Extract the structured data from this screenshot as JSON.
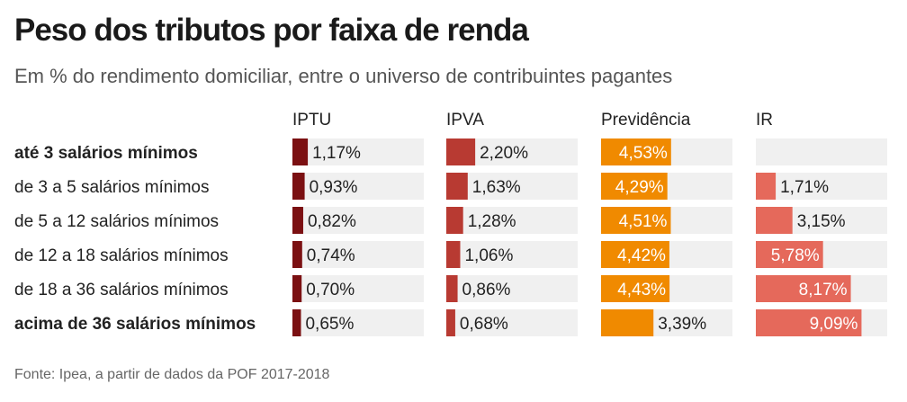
{
  "title": "Peso dos tributos por faixa de renda",
  "subtitle": "Em % do rendimento domiciliar, entre o universo de contribuintes pagantes",
  "source": "Fonte: Ipea, a partir de dados da POF 2017-2018",
  "chart_data": {
    "type": "bar",
    "categories": [
      "até 3 salários mínimos",
      "de 3 a 5 salários mínimos",
      "de 5 a 12 salários mínimos",
      "de 12 a 18 salários mínimos",
      "de 18 a 36 salários mínimos",
      "acima de 36 salários mínimos"
    ],
    "bold_categories": [
      "até 3 salários mínimos",
      "acima de 36 salários mínimos"
    ],
    "series": [
      {
        "name": "IPTU",
        "color": "#7b1012",
        "values": [
          1.17,
          0.93,
          0.82,
          0.74,
          0.7,
          0.65
        ],
        "labels": [
          "1,17%",
          "0,93%",
          "0,82%",
          "0,74%",
          "0,70%",
          "0,65%"
        ]
      },
      {
        "name": "IPVA",
        "color": "#b83a32",
        "values": [
          2.2,
          1.63,
          1.28,
          1.06,
          0.86,
          0.68
        ],
        "labels": [
          "2,20%",
          "1,63%",
          "1,28%",
          "1,06%",
          "0,86%",
          "0,68%"
        ]
      },
      {
        "name": "Previdência",
        "color": "#f08a00",
        "values": [
          4.53,
          4.29,
          4.51,
          4.42,
          4.43,
          3.39
        ],
        "labels": [
          "4,53%",
          "4,29%",
          "4,51%",
          "4,42%",
          "4,43%",
          "3,39%"
        ]
      },
      {
        "name": "IR",
        "color": "#e5695b",
        "values": [
          null,
          1.71,
          3.15,
          5.78,
          8.17,
          9.09
        ],
        "labels": [
          "",
          "1,71%",
          "3,15%",
          "5,78%",
          "8,17%",
          "9,09%"
        ]
      }
    ],
    "panel_max": [
      10,
      10,
      8.5,
      11.3
    ],
    "background_color": "#f0f0f0"
  }
}
